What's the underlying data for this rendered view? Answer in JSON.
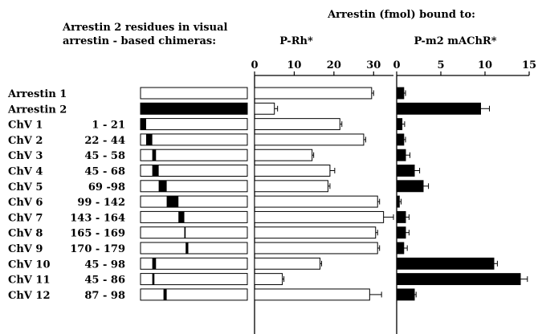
{
  "chart_data": {
    "type": "bar",
    "title": "Arrestin (fmol) bound to:",
    "schematic_header": [
      "Arrestin 2 residues in visual",
      "arrestin - based chimeras:"
    ],
    "colors": {
      "black": "#000000",
      "white": "#ffffff"
    },
    "rows": [
      {
        "label": "Arrestin 1",
        "residues": "",
        "segment": "none",
        "rh": 29.5,
        "rh_err": 0.5,
        "m2": 0.8,
        "m2_err": 0.2
      },
      {
        "label": "Arrestin 2",
        "residues": "",
        "segment": "full",
        "rh": 5.0,
        "rh_err": 0.8,
        "m2": 9.5,
        "m2_err": 1.0
      },
      {
        "label": "ChV 1",
        "residues": "1 - 21",
        "seg_start": 1,
        "seg_end": 21,
        "rh": 21.5,
        "rh_err": 0.5,
        "m2": 0.6,
        "m2_err": 0.3
      },
      {
        "label": "ChV 2",
        "residues": "22 - 44",
        "seg_start": 22,
        "seg_end": 44,
        "rh": 27.5,
        "rh_err": 0.5,
        "m2": 0.8,
        "m2_err": 0.2
      },
      {
        "label": "ChV 3",
        "residues": "45 - 58",
        "seg_start": 45,
        "seg_end": 58,
        "rh": 14.5,
        "rh_err": 0.4,
        "m2": 1.0,
        "m2_err": 0.5
      },
      {
        "label": "ChV 4",
        "residues": "45 - 68",
        "seg_start": 45,
        "seg_end": 68,
        "rh": 19.0,
        "rh_err": 1.2,
        "m2": 2.0,
        "m2_err": 0.6
      },
      {
        "label": "ChV 5",
        "residues": "69 -98",
        "seg_start": 69,
        "seg_end": 98,
        "rh": 18.5,
        "rh_err": 0.5,
        "m2": 3.0,
        "m2_err": 0.6
      },
      {
        "label": "ChV 6",
        "residues": "99 - 142",
        "seg_start": 99,
        "seg_end": 142,
        "rh": 31.0,
        "rh_err": 0.5,
        "m2": 0.3,
        "m2_err": 0.2
      },
      {
        "label": "ChV 7",
        "residues": "143 - 164",
        "seg_start": 143,
        "seg_end": 164,
        "rh": 32.5,
        "rh_err": 2.5,
        "m2": 1.0,
        "m2_err": 0.4
      },
      {
        "label": "ChV 8",
        "residues": "165 - 169",
        "seg_start": 165,
        "seg_end": 169,
        "rh": 30.5,
        "rh_err": 0.5,
        "m2": 1.0,
        "m2_err": 0.4
      },
      {
        "label": "ChV 9",
        "residues": "170 - 179",
        "seg_start": 170,
        "seg_end": 179,
        "rh": 31.0,
        "rh_err": 0.5,
        "m2": 0.8,
        "m2_err": 0.4
      },
      {
        "label": "ChV 10",
        "residues": "45 - 98",
        "seg_start": 45,
        "seg_end": 58,
        "rh": 16.5,
        "rh_err": 0.4,
        "m2": 11.0,
        "m2_err": 0.4
      },
      {
        "label": "ChV 11",
        "residues": "45 - 86",
        "seg_start": 45,
        "seg_end": 52,
        "rh": 7.0,
        "rh_err": 0.4,
        "m2": 14.0,
        "m2_err": 0.8
      },
      {
        "label": "ChV 12",
        "residues": "87 - 98",
        "seg_start": 87,
        "seg_end": 98,
        "rh": 29.0,
        "rh_err": 3.0,
        "m2": 2.0,
        "m2_err": 0.2
      }
    ],
    "schematic_scale_max": 400,
    "panels": [
      {
        "name": "P-Rh*",
        "xlim": [
          0,
          35
        ],
        "ticks": [
          0,
          10,
          20,
          30
        ],
        "fill": "#ffffff"
      },
      {
        "name": "P-m2 mAChR*",
        "xlim": [
          0,
          15
        ],
        "ticks": [
          0,
          5,
          10,
          15
        ],
        "fill": "#000000"
      }
    ]
  }
}
